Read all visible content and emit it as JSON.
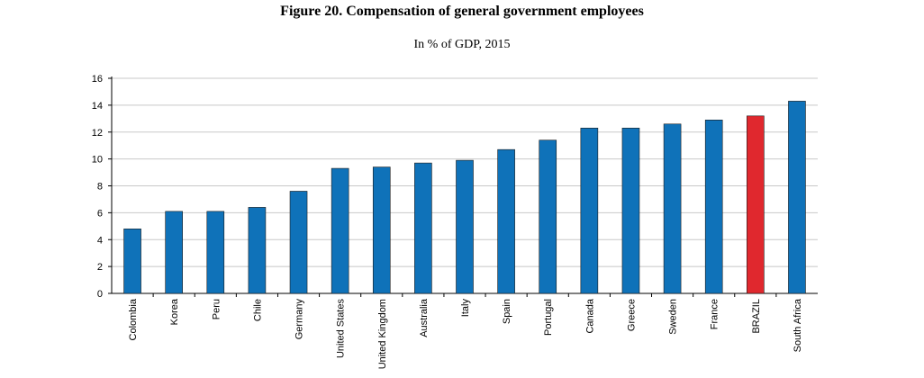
{
  "chart_data": {
    "type": "bar",
    "title": "Figure 20. Compensation of general government employees",
    "subtitle": "In % of GDP, 2015",
    "xlabel": "",
    "ylabel": "",
    "ylim": [
      0,
      16
    ],
    "yticks": [
      0,
      2,
      4,
      6,
      8,
      10,
      12,
      14,
      16
    ],
    "grid": true,
    "categories": [
      "Colombia",
      "Korea",
      "Peru",
      "Chile",
      "Germany",
      "United States",
      "United Kingdom",
      "Australia",
      "Italy",
      "Spain",
      "Portugal",
      "Canada",
      "Greece",
      "Sweden",
      "France",
      "BRAZIL",
      "South Africa"
    ],
    "values": [
      4.8,
      6.1,
      6.1,
      6.4,
      7.6,
      9.3,
      9.4,
      9.7,
      9.9,
      10.7,
      11.4,
      12.3,
      12.3,
      12.6,
      12.9,
      13.2,
      14.3
    ],
    "highlight": "BRAZIL",
    "colors": {
      "bar": "#0f72b9",
      "highlight": "#e0282e",
      "grid": "#c8c8c8",
      "axis": "#000000"
    }
  }
}
